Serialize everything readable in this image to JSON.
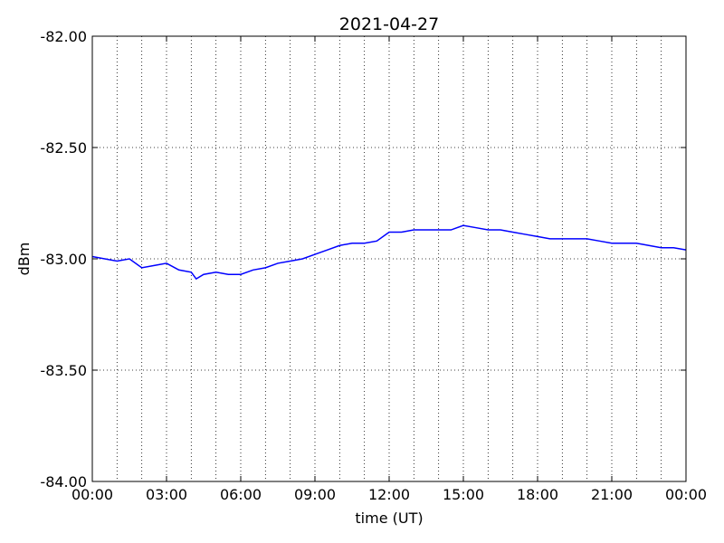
{
  "chart_data": {
    "type": "line",
    "title": "2021-04-27",
    "x_label": "time (UT)",
    "y_label": "dBm",
    "x": [
      0,
      0.5,
      1,
      1.5,
      2,
      2.5,
      3,
      3.5,
      4,
      4.2,
      4.5,
      5,
      5.5,
      6,
      6.5,
      7,
      7.5,
      8,
      8.5,
      9,
      9.5,
      10,
      10.5,
      11,
      11.5,
      12,
      12.5,
      13,
      13.5,
      14,
      14.5,
      15,
      15.5,
      16,
      16.5,
      17,
      17.5,
      18,
      18.5,
      19,
      19.5,
      20,
      20.5,
      21,
      21.5,
      22,
      22.5,
      23,
      23.5,
      24
    ],
    "series": [
      {
        "color": "#0000ff",
        "values": [
          -82.99,
          -83.0,
          -83.01,
          -83.0,
          -83.04,
          -83.03,
          -83.02,
          -83.05,
          -83.06,
          -83.09,
          -83.07,
          -83.06,
          -83.07,
          -83.07,
          -83.05,
          -83.04,
          -83.02,
          -83.01,
          -83.0,
          -82.98,
          -82.96,
          -82.94,
          -82.93,
          -82.93,
          -82.92,
          -82.88,
          -82.88,
          -82.87,
          -82.87,
          -82.87,
          -82.87,
          -82.85,
          -82.86,
          -82.87,
          -82.87,
          -82.88,
          -82.89,
          -82.9,
          -82.91,
          -82.91,
          -82.91,
          -82.91,
          -82.92,
          -82.93,
          -82.93,
          -82.93,
          -82.94,
          -82.95,
          -82.95,
          -82.96
        ]
      }
    ],
    "xlim": [
      0,
      24
    ],
    "xticks": [
      {
        "value": 0,
        "label": "00:00"
      },
      {
        "value": 3,
        "label": "03:00"
      },
      {
        "value": 6,
        "label": "06:00"
      },
      {
        "value": 9,
        "label": "09:00"
      },
      {
        "value": 12,
        "label": "12:00"
      },
      {
        "value": 15,
        "label": "15:00"
      },
      {
        "value": 18,
        "label": "18:00"
      },
      {
        "value": 21,
        "label": "21:00"
      },
      {
        "value": 24,
        "label": "00:00"
      }
    ],
    "x_minor_ticks": [
      1,
      2,
      4,
      5,
      7,
      8,
      10,
      11,
      13,
      14,
      16,
      17,
      19,
      20,
      22,
      23
    ],
    "ylim": [
      -84,
      -82
    ],
    "yticks": [
      {
        "value": -84,
        "label": "-84.00"
      },
      {
        "value": -83.5,
        "label": "-83.50"
      },
      {
        "value": -83,
        "label": "-83.00"
      },
      {
        "value": -82.5,
        "label": "-82.50"
      },
      {
        "value": -82,
        "label": "-82.00"
      }
    ],
    "grid": true
  }
}
